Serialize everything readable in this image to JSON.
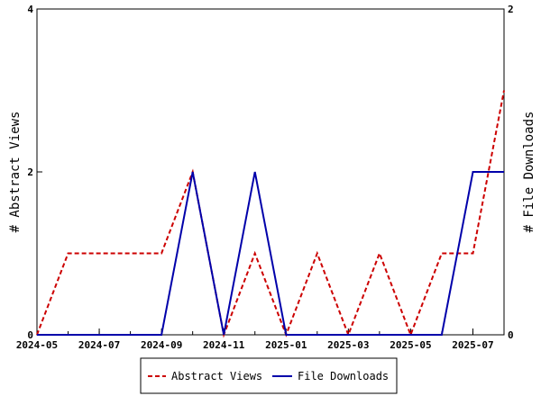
{
  "chart_data": {
    "type": "line",
    "x": [
      "2024-05",
      "2024-06",
      "2024-07",
      "2024-08",
      "2024-09",
      "2024-10",
      "2024-11",
      "2024-12",
      "2025-01",
      "2025-02",
      "2025-03",
      "2025-04",
      "2025-05",
      "2025-06",
      "2025-07",
      "2025-08"
    ],
    "x_tick_labels": [
      "2024-05",
      "2024-07",
      "2024-09",
      "2024-11",
      "2025-01",
      "2025-03",
      "2025-05",
      "2025-07"
    ],
    "ylabel_left": "# Abstract Views",
    "ylabel_right": "# File Downloads",
    "ylim_left": [
      0,
      4
    ],
    "ylim_right": [
      0,
      2
    ],
    "yticks_left": [
      "0",
      "2",
      "4"
    ],
    "yticks_right": [
      "0",
      "1",
      "2"
    ],
    "grid": false,
    "legend_position": "bottom",
    "series": [
      {
        "name": "Abstract Views",
        "axis": "left",
        "color": "#cc0000",
        "style": "dashed",
        "values": [
          0,
          1,
          1,
          1,
          1,
          2,
          0,
          1,
          0,
          1,
          0,
          1,
          0,
          1,
          1,
          3
        ]
      },
      {
        "name": "File Downloads",
        "axis": "right",
        "color": "#0000aa",
        "style": "solid",
        "values": [
          0,
          0,
          0,
          0,
          0,
          1,
          0,
          1,
          0,
          0,
          0,
          0,
          0,
          0,
          1,
          1
        ]
      }
    ]
  }
}
